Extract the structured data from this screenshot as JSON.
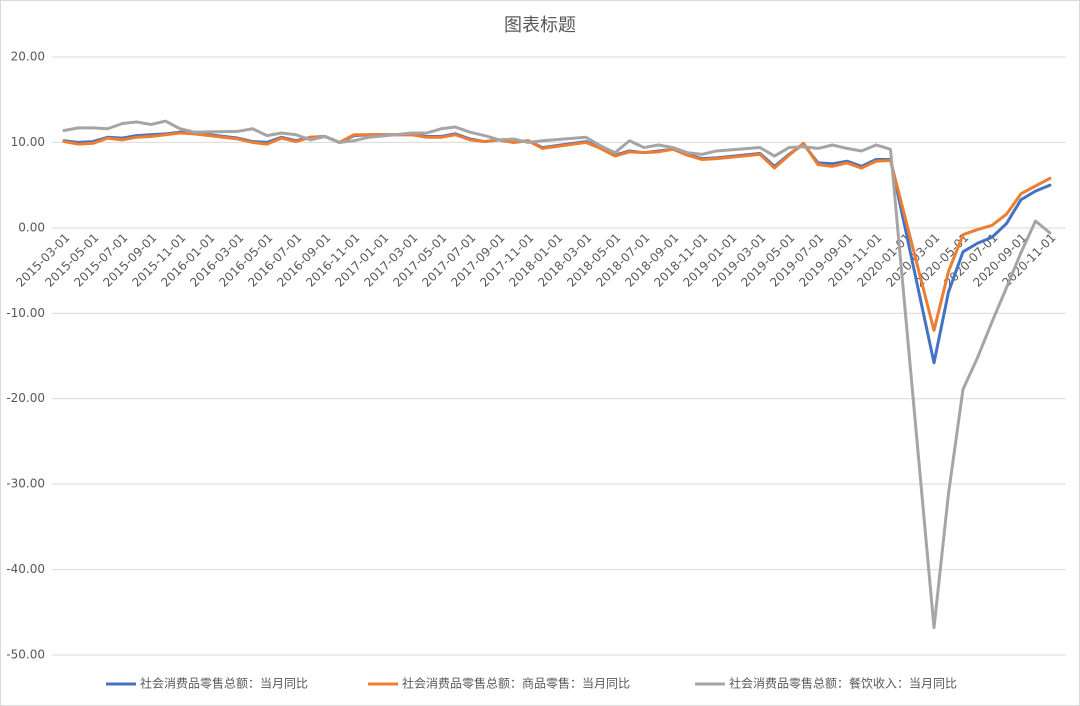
{
  "chart_data": {
    "type": "line",
    "title": "图表标题",
    "x": [
      "2015-03-01",
      "2015-04-01",
      "2015-05-01",
      "2015-06-01",
      "2015-07-01",
      "2015-08-01",
      "2015-09-01",
      "2015-10-01",
      "2015-11-01",
      "2015-12-01",
      "2016-03-01",
      "2016-04-01",
      "2016-05-01",
      "2016-06-01",
      "2016-07-01",
      "2016-08-01",
      "2016-09-01",
      "2016-10-01",
      "2016-11-01",
      "2016-12-01",
      "2017-03-01",
      "2017-04-01",
      "2017-05-01",
      "2017-06-01",
      "2017-07-01",
      "2017-08-01",
      "2017-09-01",
      "2017-10-01",
      "2017-11-01",
      "2017-12-01",
      "2018-03-01",
      "2018-04-01",
      "2018-05-01",
      "2018-06-01",
      "2018-07-01",
      "2018-08-01",
      "2018-09-01",
      "2018-10-01",
      "2018-11-01",
      "2018-12-01",
      "2019-03-01",
      "2019-04-01",
      "2019-05-01",
      "2019-06-01",
      "2019-07-01",
      "2019-08-01",
      "2019-09-01",
      "2019-10-01",
      "2019-11-01",
      "2019-12-01",
      "2020-03-01",
      "2020-04-01",
      "2020-05-01",
      "2020-06-01",
      "2020-07-01",
      "2020-08-01",
      "2020-09-01",
      "2020-10-01",
      "2020-11-01"
    ],
    "series": [
      {
        "name": "社会消费品零售总额：当月同比",
        "color": "#4472c4",
        "values": [
          10.2,
          10.0,
          10.1,
          10.6,
          10.5,
          10.8,
          10.9,
          11.0,
          11.2,
          11.1,
          10.5,
          10.1,
          10.0,
          10.6,
          10.2,
          10.6,
          10.7,
          10.0,
          10.8,
          10.9,
          10.9,
          10.7,
          10.7,
          11.0,
          10.4,
          10.1,
          10.3,
          10.0,
          10.2,
          9.4,
          10.1,
          9.4,
          8.5,
          9.0,
          8.8,
          9.0,
          9.2,
          8.6,
          8.1,
          8.2,
          8.7,
          7.2,
          8.6,
          9.8,
          7.6,
          7.5,
          7.8,
          7.2,
          8.0,
          8.0,
          -15.8,
          -7.5,
          -2.8,
          -1.8,
          -1.1,
          0.5,
          3.3,
          4.3,
          5.0
        ]
      },
      {
        "name": "社会消费品零售总额：商品零售：当月同比",
        "color": "#ed7d31",
        "values": [
          10.1,
          9.8,
          9.9,
          10.5,
          10.3,
          10.6,
          10.7,
          10.9,
          11.1,
          11.0,
          10.4,
          10.0,
          9.8,
          10.5,
          10.1,
          10.6,
          10.7,
          10.0,
          10.9,
          10.9,
          10.9,
          10.6,
          10.6,
          10.9,
          10.3,
          10.1,
          10.3,
          10.0,
          10.2,
          9.3,
          10.0,
          9.3,
          8.4,
          8.9,
          8.8,
          8.9,
          9.2,
          8.5,
          8.0,
          8.1,
          8.6,
          7.0,
          8.5,
          9.9,
          7.4,
          7.2,
          7.6,
          7.0,
          7.8,
          7.9,
          -12.0,
          -5.1,
          -0.8,
          -0.2,
          0.3,
          1.6,
          4.0,
          4.9,
          5.8
        ]
      },
      {
        "name": "社会消费品零售总额：餐饮收入：当月同比",
        "color": "#a5a5a5",
        "values": [
          11.4,
          11.7,
          11.7,
          11.6,
          12.2,
          12.4,
          12.1,
          12.5,
          11.6,
          11.2,
          11.3,
          11.6,
          10.8,
          11.1,
          10.9,
          10.3,
          10.7,
          10.0,
          10.2,
          10.6,
          11.1,
          11.1,
          11.6,
          11.8,
          11.2,
          10.8,
          10.3,
          10.4,
          10.0,
          10.2,
          10.6,
          9.6,
          8.8,
          10.2,
          9.4,
          9.7,
          9.4,
          8.8,
          8.6,
          9.0,
          9.4,
          8.4,
          9.4,
          9.5,
          9.3,
          9.7,
          9.3,
          9.0,
          9.7,
          9.2,
          -46.8,
          -31.1,
          -18.9,
          -15.2,
          -11.0,
          -7.0,
          -2.9,
          0.8,
          -0.6
        ]
      }
    ],
    "xticks": [
      "2015-03-01",
      "2015-05-01",
      "2015-07-01",
      "2015-09-01",
      "2015-11-01",
      "2016-01-01",
      "2016-03-01",
      "2016-05-01",
      "2016-07-01",
      "2016-09-01",
      "2016-11-01",
      "2017-01-01",
      "2017-03-01",
      "2017-05-01",
      "2017-07-01",
      "2017-09-01",
      "2017-11-01",
      "2018-01-01",
      "2018-03-01",
      "2018-05-01",
      "2018-07-01",
      "2018-09-01",
      "2018-11-01",
      "2019-01-01",
      "2019-03-01",
      "2019-05-01",
      "2019-07-01",
      "2019-09-01",
      "2019-11-01",
      "2020-01-01",
      "2020-03-01",
      "2020-05-01",
      "2020-07-01",
      "2020-09-01",
      "2020-11-01"
    ],
    "ylim": [
      -50,
      20
    ],
    "yticks": [
      {
        "value": -50,
        "label": "-50.00"
      },
      {
        "value": -40,
        "label": "-40.00"
      },
      {
        "value": -30,
        "label": "-30.00"
      },
      {
        "value": -20,
        "label": "-20.00"
      },
      {
        "value": -10,
        "label": "-10.00"
      },
      {
        "value": 0,
        "label": "0.00"
      },
      {
        "value": 10,
        "label": "10.00"
      },
      {
        "value": 20,
        "label": "20.00"
      }
    ],
    "grid": true,
    "legend": "bottom"
  }
}
